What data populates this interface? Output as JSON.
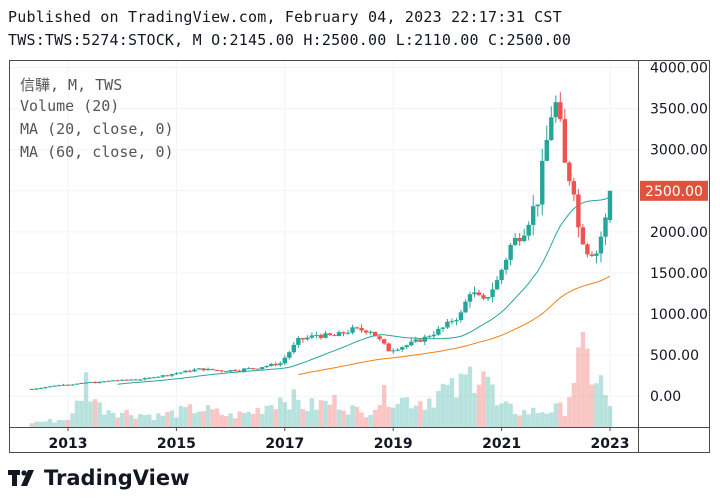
{
  "header": {
    "line1": "Published on TradingView.com, February 04, 2023 22:17:31 CST",
    "line2": "TWS:TWS:5274:STOCK, M O:2145.00 H:2500.00 L:2110.00 C:2500.00"
  },
  "legend": {
    "symbol": "信驊, M, TWS",
    "volume": "Volume (20)",
    "ma20": "MA (20, close, 0)",
    "ma60": "MA (60, close, 0)"
  },
  "brand": {
    "name": "TradingView",
    "logo_icon": "tradingview-logo-icon"
  },
  "colors": {
    "up": "#26a69a",
    "down": "#ef5350",
    "ma20": "#26a69a",
    "ma60": "#f57f17",
    "price_label_bg": "#e0523e"
  },
  "chart_data": {
    "type": "candlestick",
    "interval": "monthly",
    "x_ticks": [
      "2013",
      "2015",
      "2017",
      "2019",
      "2021",
      "2023"
    ],
    "y_ticks": [
      "4000.00",
      "3500.00",
      "3000.00",
      "2500.00",
      "2000.00",
      "1500.00",
      "1000.00",
      "500.00",
      "0.00"
    ],
    "ylim": [
      -375,
      4080
    ],
    "last_price": "2500.00",
    "last_bar": {
      "open": 2145,
      "high": 2500,
      "low": 2110,
      "close": 2500
    },
    "anchors": [
      [
        "2012-05",
        90
      ],
      [
        "2012-12",
        140
      ],
      [
        "2013-06",
        160
      ],
      [
        "2013-12",
        190
      ],
      [
        "2014-06",
        210
      ],
      [
        "2014-12",
        270
      ],
      [
        "2015-06",
        330
      ],
      [
        "2015-12",
        310
      ],
      [
        "2016-06",
        340
      ],
      [
        "2016-12",
        400
      ],
      [
        "2017-04",
        680
      ],
      [
        "2017-08",
        740
      ],
      [
        "2017-12",
        730
      ],
      [
        "2018-04",
        810
      ],
      [
        "2018-08",
        800
      ],
      [
        "2018-12",
        560
      ],
      [
        "2019-04",
        620
      ],
      [
        "2019-08",
        710
      ],
      [
        "2019-12",
        830
      ],
      [
        "2020-04",
        1000
      ],
      [
        "2020-06",
        1280
      ],
      [
        "2020-09",
        1150
      ],
      [
        "2020-12",
        1400
      ],
      [
        "2021-03",
        1830
      ],
      [
        "2021-06",
        2040
      ],
      [
        "2021-09",
        2400
      ],
      [
        "2021-11",
        3100
      ],
      [
        "2021-12",
        3450
      ],
      [
        "2022-01",
        3540
      ],
      [
        "2022-02",
        3250
      ],
      [
        "2022-03",
        2800
      ],
      [
        "2022-05",
        2550
      ],
      [
        "2022-06",
        2050
      ],
      [
        "2022-08",
        1780
      ],
      [
        "2022-10",
        1750
      ],
      [
        "2022-12",
        2145
      ],
      [
        "2023-01",
        2500
      ]
    ],
    "volume_anchors": [
      [
        "2012-05",
        0.05
      ],
      [
        "2012-12",
        0.08
      ],
      [
        "2013-02",
        0.12
      ],
      [
        "2013-05",
        0.5
      ],
      [
        "2013-08",
        0.22
      ],
      [
        "2014-01",
        0.16
      ],
      [
        "2014-09",
        0.12
      ],
      [
        "2015-06",
        0.2
      ],
      [
        "2016-01",
        0.12
      ],
      [
        "2016-06",
        0.16
      ],
      [
        "2017-01",
        0.34
      ],
      [
        "2017-06",
        0.22
      ],
      [
        "2018-01",
        0.28
      ],
      [
        "2018-06",
        0.14
      ],
      [
        "2018-12",
        0.36
      ],
      [
        "2019-03",
        0.3
      ],
      [
        "2019-08",
        0.28
      ],
      [
        "2019-12",
        0.4
      ],
      [
        "2020-03",
        0.38
      ],
      [
        "2020-06",
        0.56
      ],
      [
        "2020-09",
        0.7
      ],
      [
        "2020-12",
        0.22
      ],
      [
        "2021-06",
        0.16
      ],
      [
        "2021-11",
        0.18
      ],
      [
        "2022-03",
        0.2
      ],
      [
        "2022-05",
        0.56
      ],
      [
        "2022-07",
        0.8
      ],
      [
        "2022-09",
        0.6
      ],
      [
        "2022-11",
        0.48
      ],
      [
        "2023-01",
        0.18
      ]
    ]
  }
}
